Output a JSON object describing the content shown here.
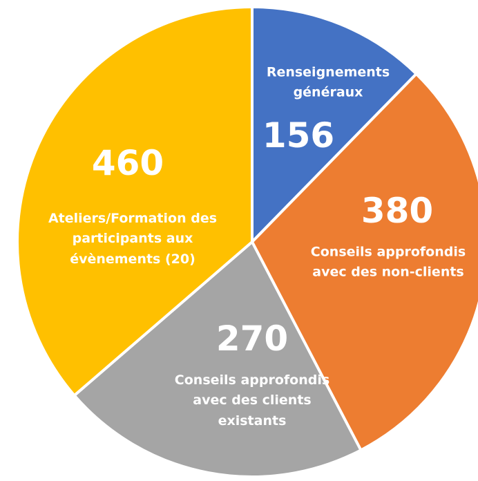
{
  "chart_data": {
    "type": "pie",
    "categories": [
      "Renseignements généraux",
      "Conseils approfondis avec des non-clients",
      "Conseils approfondis avec des clients existants",
      "Ateliers/Formation des participants aux évènements (20)"
    ],
    "values": [
      156,
      380,
      270,
      460
    ],
    "colors": [
      "#4472c4",
      "#ed7d31",
      "#a5a5a5",
      "#ffc000"
    ]
  }
}
